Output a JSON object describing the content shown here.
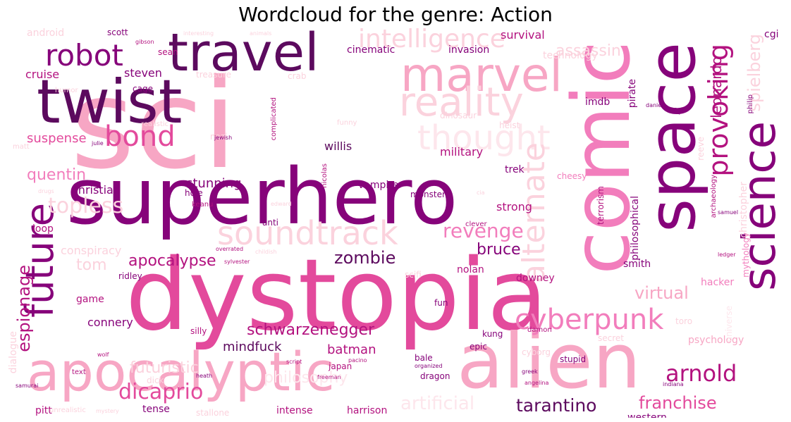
{
  "title": "Wordcloud for the genre: Action",
  "colors": {
    "background": "#ffffff",
    "title_text": "#000000",
    "dark_purple": "#5c0a5e",
    "purple": "#86037a",
    "magenta": "#b3127f",
    "pink": "#e34a9c",
    "rose": "#f27dbc",
    "light_pink": "#f7a6c4",
    "pale_pink": "#fbd2dd",
    "faint_pink": "#fde6ec"
  },
  "words": [
    {
      "text": "sci",
      "color": "#f7a6c4"
    },
    {
      "text": "superhero",
      "color": "#86037a"
    },
    {
      "text": "dystopia",
      "color": "#e34a9c"
    },
    {
      "text": "alien",
      "color": "#f7a6c4"
    },
    {
      "text": "comic",
      "color": "#f27dbc"
    },
    {
      "text": "space",
      "color": "#86037a"
    },
    {
      "text": "twist",
      "color": "#5c0a5e"
    },
    {
      "text": "travel",
      "color": "#5c0a5e"
    },
    {
      "text": "apocalyptic",
      "color": "#f7a6c4"
    },
    {
      "text": "marvel",
      "color": "#f7a6c4"
    },
    {
      "text": "science",
      "color": "#86037a"
    },
    {
      "text": "reality",
      "color": "#fbd2dd"
    },
    {
      "text": "robot",
      "color": "#86037a"
    },
    {
      "text": "future",
      "color": "#86037a"
    },
    {
      "text": "bond",
      "color": "#e34a9c"
    },
    {
      "text": "provoking",
      "color": "#b3127f"
    },
    {
      "text": "thought",
      "color": "#fde6ec"
    },
    {
      "text": "soundtrack",
      "color": "#fbd2dd"
    },
    {
      "text": "alternate",
      "color": "#fbd2dd"
    },
    {
      "text": "cyberpunk",
      "color": "#f27dbc"
    },
    {
      "text": "intelligence",
      "color": "#fbd2dd"
    },
    {
      "text": "topless",
      "color": "#fbd2dd"
    },
    {
      "text": "revenge",
      "color": "#f27dbc"
    },
    {
      "text": "arnold",
      "color": "#b3127f"
    },
    {
      "text": "tarantino",
      "color": "#5c0a5e"
    },
    {
      "text": "franchise",
      "color": "#e34a9c"
    },
    {
      "text": "artificial",
      "color": "#fde6ec"
    },
    {
      "text": "dicaprio",
      "color": "#e34a9c"
    },
    {
      "text": "schwarzenegger",
      "color": "#b3127f"
    },
    {
      "text": "futuristic",
      "color": "#fbd2dd"
    },
    {
      "text": "espionage",
      "color": "#b3127f"
    },
    {
      "text": "apocalypse",
      "color": "#b3127f"
    },
    {
      "text": "zombie",
      "color": "#5c0a5e"
    },
    {
      "text": "bruce",
      "color": "#86037a"
    },
    {
      "text": "virtual",
      "color": "#f7a6c4"
    },
    {
      "text": "quentin",
      "color": "#f27dbc"
    },
    {
      "text": "spielberg",
      "color": "#fbd2dd"
    },
    {
      "text": "leonardo",
      "color": "#b3127f"
    },
    {
      "text": "assassin",
      "color": "#fbd2dd"
    },
    {
      "text": "philosophy",
      "color": "#fde6ec"
    },
    {
      "text": "tom",
      "color": "#fbd2dd"
    },
    {
      "text": "mindfuck",
      "color": "#5c0a5e"
    },
    {
      "text": "batman",
      "color": "#b3127f"
    },
    {
      "text": "suspense",
      "color": "#e34a9c"
    },
    {
      "text": "cruise",
      "color": "#b3127f"
    },
    {
      "text": "steven",
      "color": "#86037a"
    },
    {
      "text": "conspiracy",
      "color": "#fbd2dd"
    },
    {
      "text": "christian",
      "color": "#86037a"
    },
    {
      "text": "stunning",
      "color": "#86037a"
    },
    {
      "text": "military",
      "color": "#b3127f"
    },
    {
      "text": "willis",
      "color": "#5c0a5e"
    },
    {
      "text": "strong",
      "color": "#b3127f"
    },
    {
      "text": "connery",
      "color": "#86037a"
    },
    {
      "text": "survival",
      "color": "#b3127f"
    },
    {
      "text": "invasion",
      "color": "#86037a"
    },
    {
      "text": "cinematic",
      "color": "#86037a"
    },
    {
      "text": "technology",
      "color": "#fbd2dd"
    },
    {
      "text": "android",
      "color": "#fbd2dd"
    },
    {
      "text": "vampire",
      "color": "#86037a"
    },
    {
      "text": "philosophical",
      "color": "#86037a"
    },
    {
      "text": "christopher",
      "color": "#fbd2dd"
    },
    {
      "text": "hacker",
      "color": "#f27dbc"
    },
    {
      "text": "psychology",
      "color": "#f7a6c4"
    },
    {
      "text": "trek",
      "color": "#86037a"
    },
    {
      "text": "loop",
      "color": "#b3127f"
    },
    {
      "text": "game",
      "color": "#b3127f"
    },
    {
      "text": "nolan",
      "color": "#b3127f"
    },
    {
      "text": "downey",
      "color": "#b3127f"
    },
    {
      "text": "pirate",
      "color": "#86037a"
    },
    {
      "text": "smith",
      "color": "#86037a"
    },
    {
      "text": "tense",
      "color": "#86037a"
    },
    {
      "text": "pitt",
      "color": "#b3127f"
    },
    {
      "text": "intense",
      "color": "#b3127f"
    },
    {
      "text": "harrison",
      "color": "#b3127f"
    },
    {
      "text": "western",
      "color": "#86037a"
    },
    {
      "text": "dialogue",
      "color": "#fbd2dd"
    },
    {
      "text": "imdb",
      "color": "#86037a"
    },
    {
      "text": "monster",
      "color": "#86037a"
    },
    {
      "text": "kung",
      "color": "#86037a"
    },
    {
      "text": "epic",
      "color": "#86037a"
    },
    {
      "text": "stupid",
      "color": "#86037a"
    },
    {
      "text": "dragon",
      "color": "#86037a"
    },
    {
      "text": "bale",
      "color": "#86037a"
    },
    {
      "text": "cheesy",
      "color": "#f27dbc"
    },
    {
      "text": "terrorism",
      "color": "#b3127f"
    },
    {
      "text": "mythology",
      "color": "#f27dbc"
    },
    {
      "text": "scott",
      "color": "#86037a"
    },
    {
      "text": "sean",
      "color": "#b3127f"
    },
    {
      "text": "cage",
      "color": "#86037a"
    },
    {
      "text": "treasure",
      "color": "#fbd2dd"
    },
    {
      "text": "dinosaur",
      "color": "#fbd2dd"
    },
    {
      "text": "heist",
      "color": "#fbd2dd"
    },
    {
      "text": "hole",
      "color": "#86037a"
    },
    {
      "text": "keanu",
      "color": "#b3127f"
    },
    {
      "text": "nazi",
      "color": "#fbd2dd"
    },
    {
      "text": "anti",
      "color": "#86037a"
    },
    {
      "text": "ridley",
      "color": "#86037a"
    },
    {
      "text": "scifi",
      "color": "#fbd2dd"
    },
    {
      "text": "fun",
      "color": "#86037a"
    },
    {
      "text": "reeve",
      "color": "#fbd2dd"
    },
    {
      "text": "cyborg",
      "color": "#fbd2dd"
    },
    {
      "text": "toro",
      "color": "#fbd2dd"
    },
    {
      "text": "secret",
      "color": "#fbd2dd"
    },
    {
      "text": "cgi",
      "color": "#86037a"
    },
    {
      "text": "universe",
      "color": "#fde6ec"
    },
    {
      "text": "cop",
      "color": "#86037a"
    },
    {
      "text": "complicated",
      "color": "#b3127f"
    },
    {
      "text": "nicolas",
      "color": "#b3127f"
    },
    {
      "text": "clever",
      "color": "#b3127f"
    },
    {
      "text": "dick",
      "color": "#fbd2dd"
    },
    {
      "text": "silly",
      "color": "#b3127f"
    },
    {
      "text": "damon",
      "color": "#b3127f"
    },
    {
      "text": "japan",
      "color": "#b3127f"
    },
    {
      "text": "archaeology",
      "color": "#b3127f"
    },
    {
      "text": "humor",
      "color": "#fbd2dd"
    },
    {
      "text": "realistic",
      "color": "#fbd2dd"
    },
    {
      "text": "gibson",
      "color": "#b3127f"
    },
    {
      "text": "jewish",
      "color": "#86037a"
    },
    {
      "text": "julie",
      "color": "#86037a"
    },
    {
      "text": "matt",
      "color": "#fbd2dd"
    },
    {
      "text": "samurai",
      "color": "#86037a"
    },
    {
      "text": "stallone",
      "color": "#fbd2dd"
    },
    {
      "text": "unrealistic",
      "color": "#fbd2dd"
    },
    {
      "text": "mystery",
      "color": "#fbd2dd"
    },
    {
      "text": "text",
      "color": "#b3127f"
    },
    {
      "text": "heath",
      "color": "#86037a"
    },
    {
      "text": "script",
      "color": "#b3127f"
    },
    {
      "text": "freeman",
      "color": "#b3127f"
    },
    {
      "text": "interesting",
      "color": "#fbd2dd"
    },
    {
      "text": "animals",
      "color": "#fbd2dd"
    },
    {
      "text": "indiana",
      "color": "#86037a"
    },
    {
      "text": "ledger",
      "color": "#b3127f"
    },
    {
      "text": "samuel",
      "color": "#86037a"
    },
    {
      "text": "philip",
      "color": "#86037a"
    },
    {
      "text": "crab",
      "color": "#fbd2dd"
    },
    {
      "text": "funny",
      "color": "#fbd2dd"
    },
    {
      "text": "pacino",
      "color": "#b3127f"
    },
    {
      "text": "organized",
      "color": "#86037a"
    },
    {
      "text": "greek",
      "color": "#86037a"
    },
    {
      "text": "angelina",
      "color": "#b3127f"
    },
    {
      "text": "overrated",
      "color": "#b3127f"
    },
    {
      "text": "sylvester",
      "color": "#b3127f"
    },
    {
      "text": "childish",
      "color": "#fbd2dd"
    },
    {
      "text": "drugs",
      "color": "#fbd2dd"
    },
    {
      "text": "wolf",
      "color": "#b3127f"
    },
    {
      "text": "edward",
      "color": "#fbd2dd"
    },
    {
      "text": "cia",
      "color": "#fbd2dd"
    },
    {
      "text": "daniel",
      "color": "#86037a"
    }
  ]
}
